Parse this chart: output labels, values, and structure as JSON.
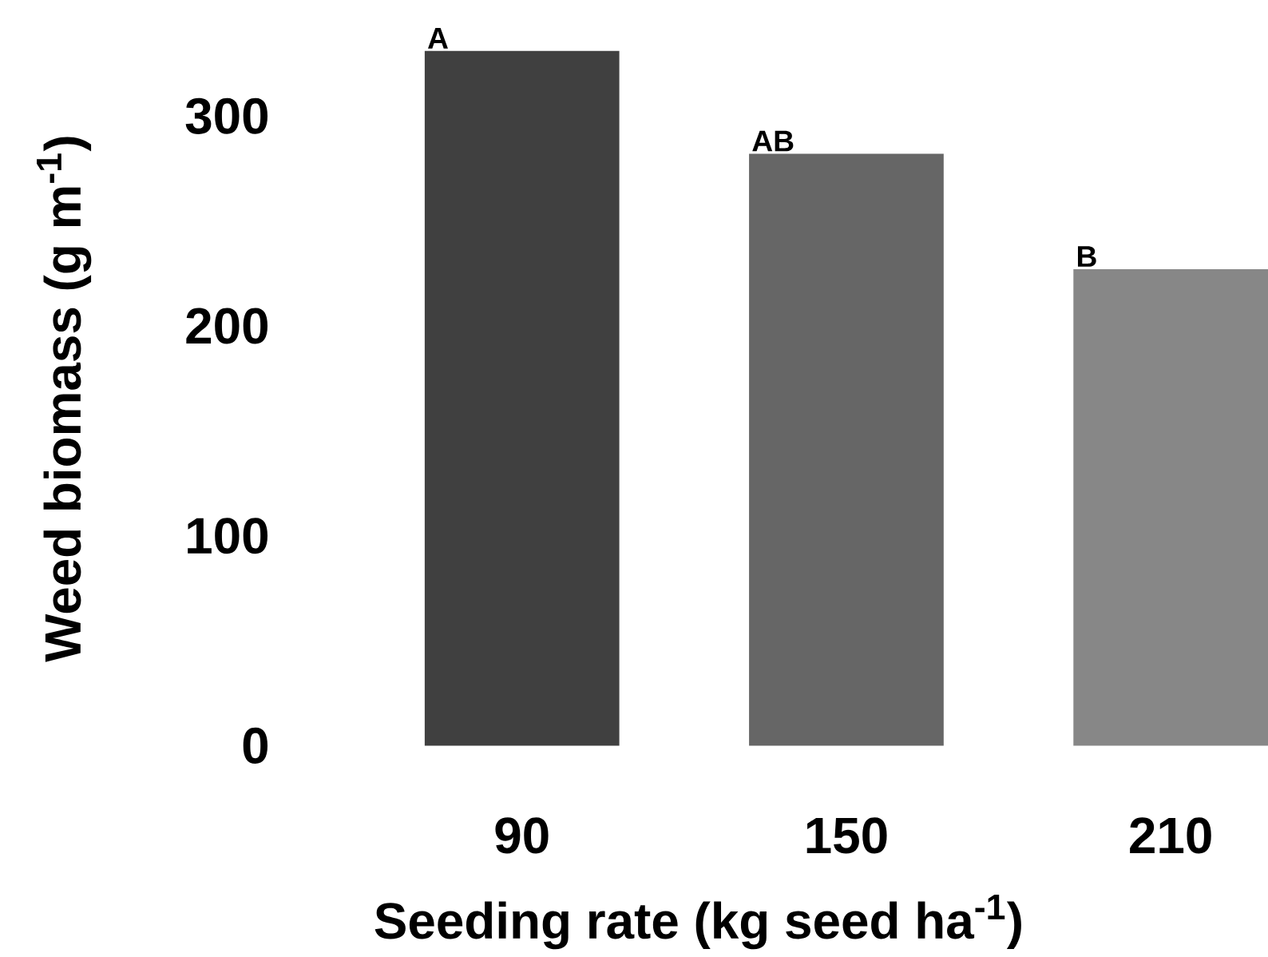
{
  "chart_data": {
    "type": "bar",
    "xlabel": "Seeding rate (kg seed ha$^{-1}$)",
    "ylabel": "Weed biomass (g m$^{-1}$)",
    "categories": [
      "90",
      "150",
      "210"
    ],
    "values": [
      331,
      282,
      227
    ],
    "colors": [
      "#404040",
      "#666666",
      "#878787"
    ],
    "ylim": [
      0,
      331
    ],
    "yticks": [
      0,
      100,
      200,
      300
    ],
    "grid": false,
    "annotations": [
      {
        "text": "A",
        "x": "90",
        "y": 331
      },
      {
        "text": "AB",
        "x": "150",
        "y": 282
      },
      {
        "text": "B",
        "x": "210",
        "y": 227
      }
    ]
  }
}
